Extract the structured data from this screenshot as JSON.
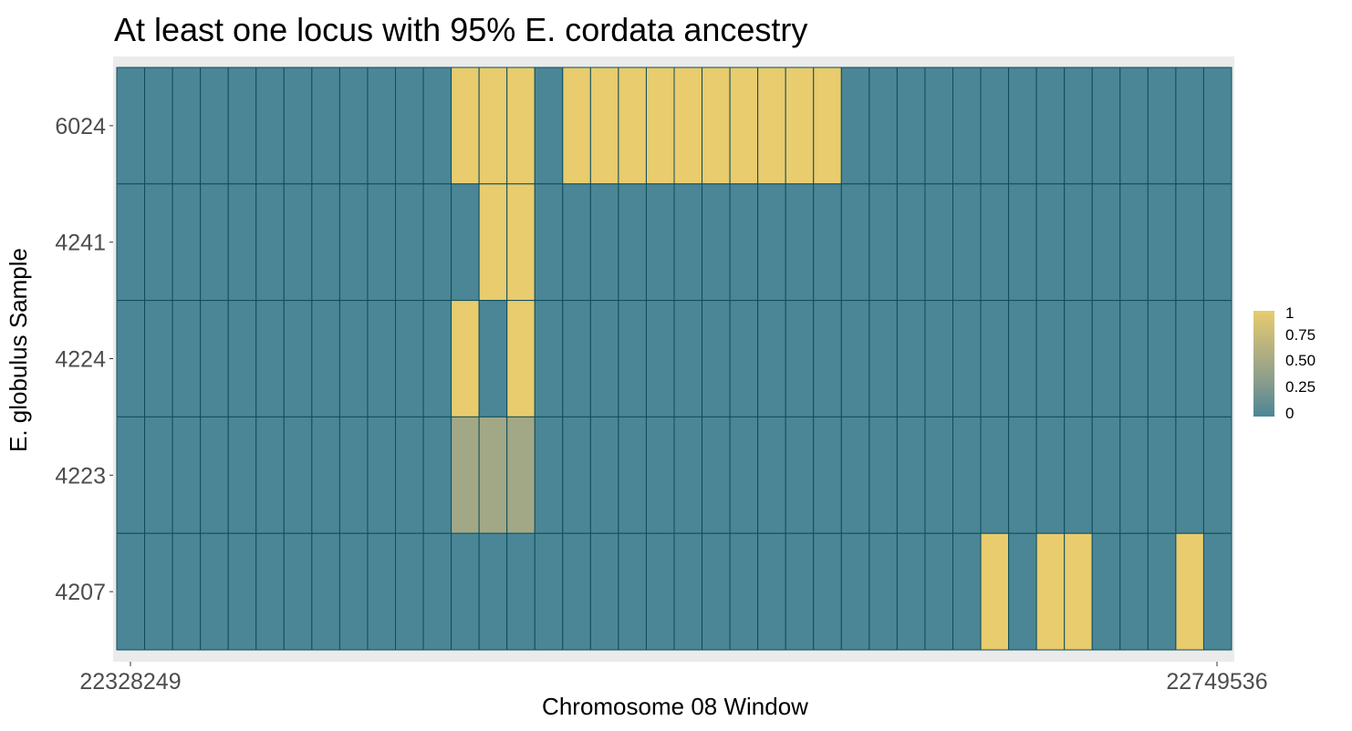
{
  "chart_data": {
    "type": "heatmap",
    "title": "At least one locus with 95% E. cordata ancestry",
    "xlabel": "Chromosome 08 Window",
    "ylabel": "E. globulus Sample",
    "x_tick_labels": [
      "22328249",
      "22749536"
    ],
    "rows": [
      "6024",
      "4241",
      "4224",
      "4223",
      "4207"
    ],
    "n_windows": 40,
    "values": [
      [
        0,
        0,
        0,
        0,
        0,
        0,
        0,
        0,
        0,
        0,
        0,
        0,
        1,
        1,
        1,
        0,
        1,
        1,
        1,
        1,
        1,
        1,
        1,
        1,
        1,
        1,
        0,
        0,
        0,
        0,
        0,
        0,
        0,
        0,
        0,
        0,
        0,
        0,
        0,
        0
      ],
      [
        0,
        0,
        0,
        0,
        0,
        0,
        0,
        0,
        0,
        0,
        0,
        0,
        0,
        1,
        1,
        0,
        0,
        0,
        0,
        0,
        0,
        0,
        0,
        0,
        0,
        0,
        0,
        0,
        0,
        0,
        0,
        0,
        0,
        0,
        0,
        0,
        0,
        0,
        0,
        0
      ],
      [
        0,
        0,
        0,
        0,
        0,
        0,
        0,
        0,
        0,
        0,
        0,
        0,
        1,
        0,
        1,
        0,
        0,
        0,
        0,
        0,
        0,
        0,
        0,
        0,
        0,
        0,
        0,
        0,
        0,
        0,
        0,
        0,
        0,
        0,
        0,
        0,
        0,
        0,
        0,
        0
      ],
      [
        0,
        0,
        0,
        0,
        0,
        0,
        0,
        0,
        0,
        0,
        0,
        0,
        0.5,
        0.5,
        0.5,
        0,
        0,
        0,
        0,
        0,
        0,
        0,
        0,
        0,
        0,
        0,
        0,
        0,
        0,
        0,
        0,
        0,
        0,
        0,
        0,
        0,
        0,
        0,
        0,
        0
      ],
      [
        0,
        0,
        0,
        0,
        0,
        0,
        0,
        0,
        0,
        0,
        0,
        0,
        0,
        0,
        0,
        0,
        0,
        0,
        0,
        0,
        0,
        0,
        0,
        0,
        0,
        0,
        0,
        0,
        0,
        0,
        0,
        1,
        0,
        1,
        1,
        0,
        0,
        0,
        1,
        0
      ]
    ],
    "legend": {
      "position": "right",
      "labels": [
        "1",
        "0.75",
        "0.50",
        "0.25",
        "0"
      ],
      "colors": [
        "#e8cc6e",
        "#b9b37f",
        "#8a9d8c",
        "#4b8696"
      ]
    },
    "grid": false,
    "panel_background": "#ebebeb",
    "cell_border_color": "#0e4d5c"
  }
}
